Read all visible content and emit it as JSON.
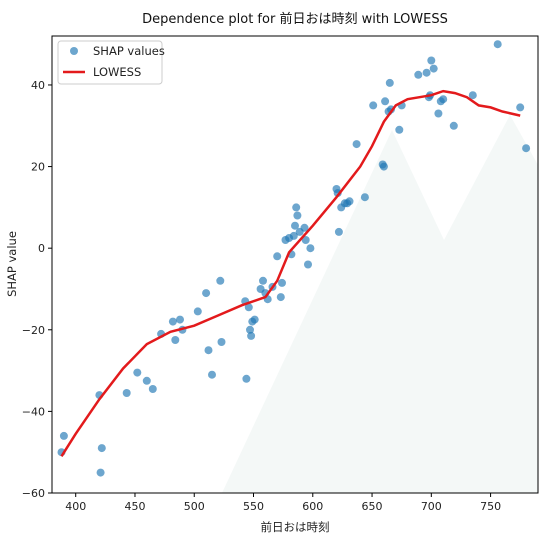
{
  "chart_data": {
    "type": "scatter",
    "title": "Dependence plot for 前日おは時刻 with LOWESS",
    "xlabel": "前日おは時刻",
    "ylabel": "SHAP value",
    "xlim": [
      380,
      790
    ],
    "ylim": [
      -60,
      52
    ],
    "xticks": [
      400,
      450,
      500,
      550,
      600,
      650,
      700,
      750
    ],
    "yticks": [
      -60,
      -40,
      -20,
      0,
      20,
      40
    ],
    "grid": false,
    "legend": "top-left",
    "series": [
      {
        "name": "SHAP values",
        "kind": "scatter",
        "color": "#1f77b4",
        "points": [
          [
            388,
            -50
          ],
          [
            390,
            -46
          ],
          [
            420,
            -36
          ],
          [
            421,
            -55
          ],
          [
            422,
            -49
          ],
          [
            443,
            -35.5
          ],
          [
            452,
            -30.5
          ],
          [
            460,
            -32.5
          ],
          [
            465,
            -34.5
          ],
          [
            472,
            -21
          ],
          [
            482,
            -18
          ],
          [
            484,
            -22.5
          ],
          [
            488,
            -17.5
          ],
          [
            490,
            -20
          ],
          [
            503,
            -15.5
          ],
          [
            510,
            -11
          ],
          [
            512,
            -25
          ],
          [
            515,
            -31
          ],
          [
            522,
            -8
          ],
          [
            523,
            -23
          ],
          [
            543,
            -13
          ],
          [
            544,
            -32
          ],
          [
            546,
            -14.5
          ],
          [
            547,
            -20
          ],
          [
            548,
            -21.5
          ],
          [
            549,
            -18
          ],
          [
            551,
            -17.5
          ],
          [
            556,
            -10
          ],
          [
            558,
            -8
          ],
          [
            560,
            -11
          ],
          [
            562,
            -12.5
          ],
          [
            566,
            -9.5
          ],
          [
            570,
            -2
          ],
          [
            573,
            -12
          ],
          [
            574,
            -8.5
          ],
          [
            577,
            2
          ],
          [
            580,
            2.5
          ],
          [
            582,
            -1.5
          ],
          [
            584,
            3
          ],
          [
            585,
            5.5
          ],
          [
            586,
            10
          ],
          [
            587,
            8
          ],
          [
            589,
            4
          ],
          [
            593,
            5
          ],
          [
            594,
            2
          ],
          [
            596,
            -4
          ],
          [
            598,
            0
          ],
          [
            620,
            14.5
          ],
          [
            621,
            13.5
          ],
          [
            622,
            4
          ],
          [
            624,
            10
          ],
          [
            627,
            11
          ],
          [
            629,
            11
          ],
          [
            631,
            11.5
          ],
          [
            637,
            25.5
          ],
          [
            644,
            12.5
          ],
          [
            651,
            35
          ],
          [
            659,
            20.5
          ],
          [
            660,
            20
          ],
          [
            661,
            36
          ],
          [
            664,
            33.5
          ],
          [
            665,
            40.5
          ],
          [
            666,
            34
          ],
          [
            673,
            29
          ],
          [
            675,
            35
          ],
          [
            689,
            42.5
          ],
          [
            696,
            43
          ],
          [
            698,
            37
          ],
          [
            699,
            37.5
          ],
          [
            700,
            46
          ],
          [
            702,
            44
          ],
          [
            706,
            33
          ],
          [
            708,
            36
          ],
          [
            710,
            36.5
          ],
          [
            719,
            30
          ],
          [
            735,
            37.5
          ],
          [
            756,
            50
          ],
          [
            775,
            34.5
          ],
          [
            780,
            24.5
          ]
        ]
      },
      {
        "name": "LOWESS",
        "kind": "line",
        "color": "#e31a1c",
        "points": [
          [
            388,
            -51
          ],
          [
            400,
            -45.5
          ],
          [
            420,
            -37
          ],
          [
            440,
            -29.5
          ],
          [
            460,
            -23.5
          ],
          [
            480,
            -20.5
          ],
          [
            500,
            -19
          ],
          [
            520,
            -16.5
          ],
          [
            540,
            -14
          ],
          [
            560,
            -12
          ],
          [
            570,
            -8
          ],
          [
            580,
            -1
          ],
          [
            600,
            5.5
          ],
          [
            620,
            12.5
          ],
          [
            640,
            20
          ],
          [
            650,
            25
          ],
          [
            660,
            31
          ],
          [
            670,
            35
          ],
          [
            680,
            36.5
          ],
          [
            690,
            37
          ],
          [
            700,
            37.5
          ],
          [
            710,
            38.5
          ],
          [
            720,
            38
          ],
          [
            730,
            37
          ],
          [
            740,
            35
          ],
          [
            750,
            34.5
          ],
          [
            760,
            33.5
          ],
          [
            775,
            32.5
          ]
        ]
      }
    ]
  }
}
